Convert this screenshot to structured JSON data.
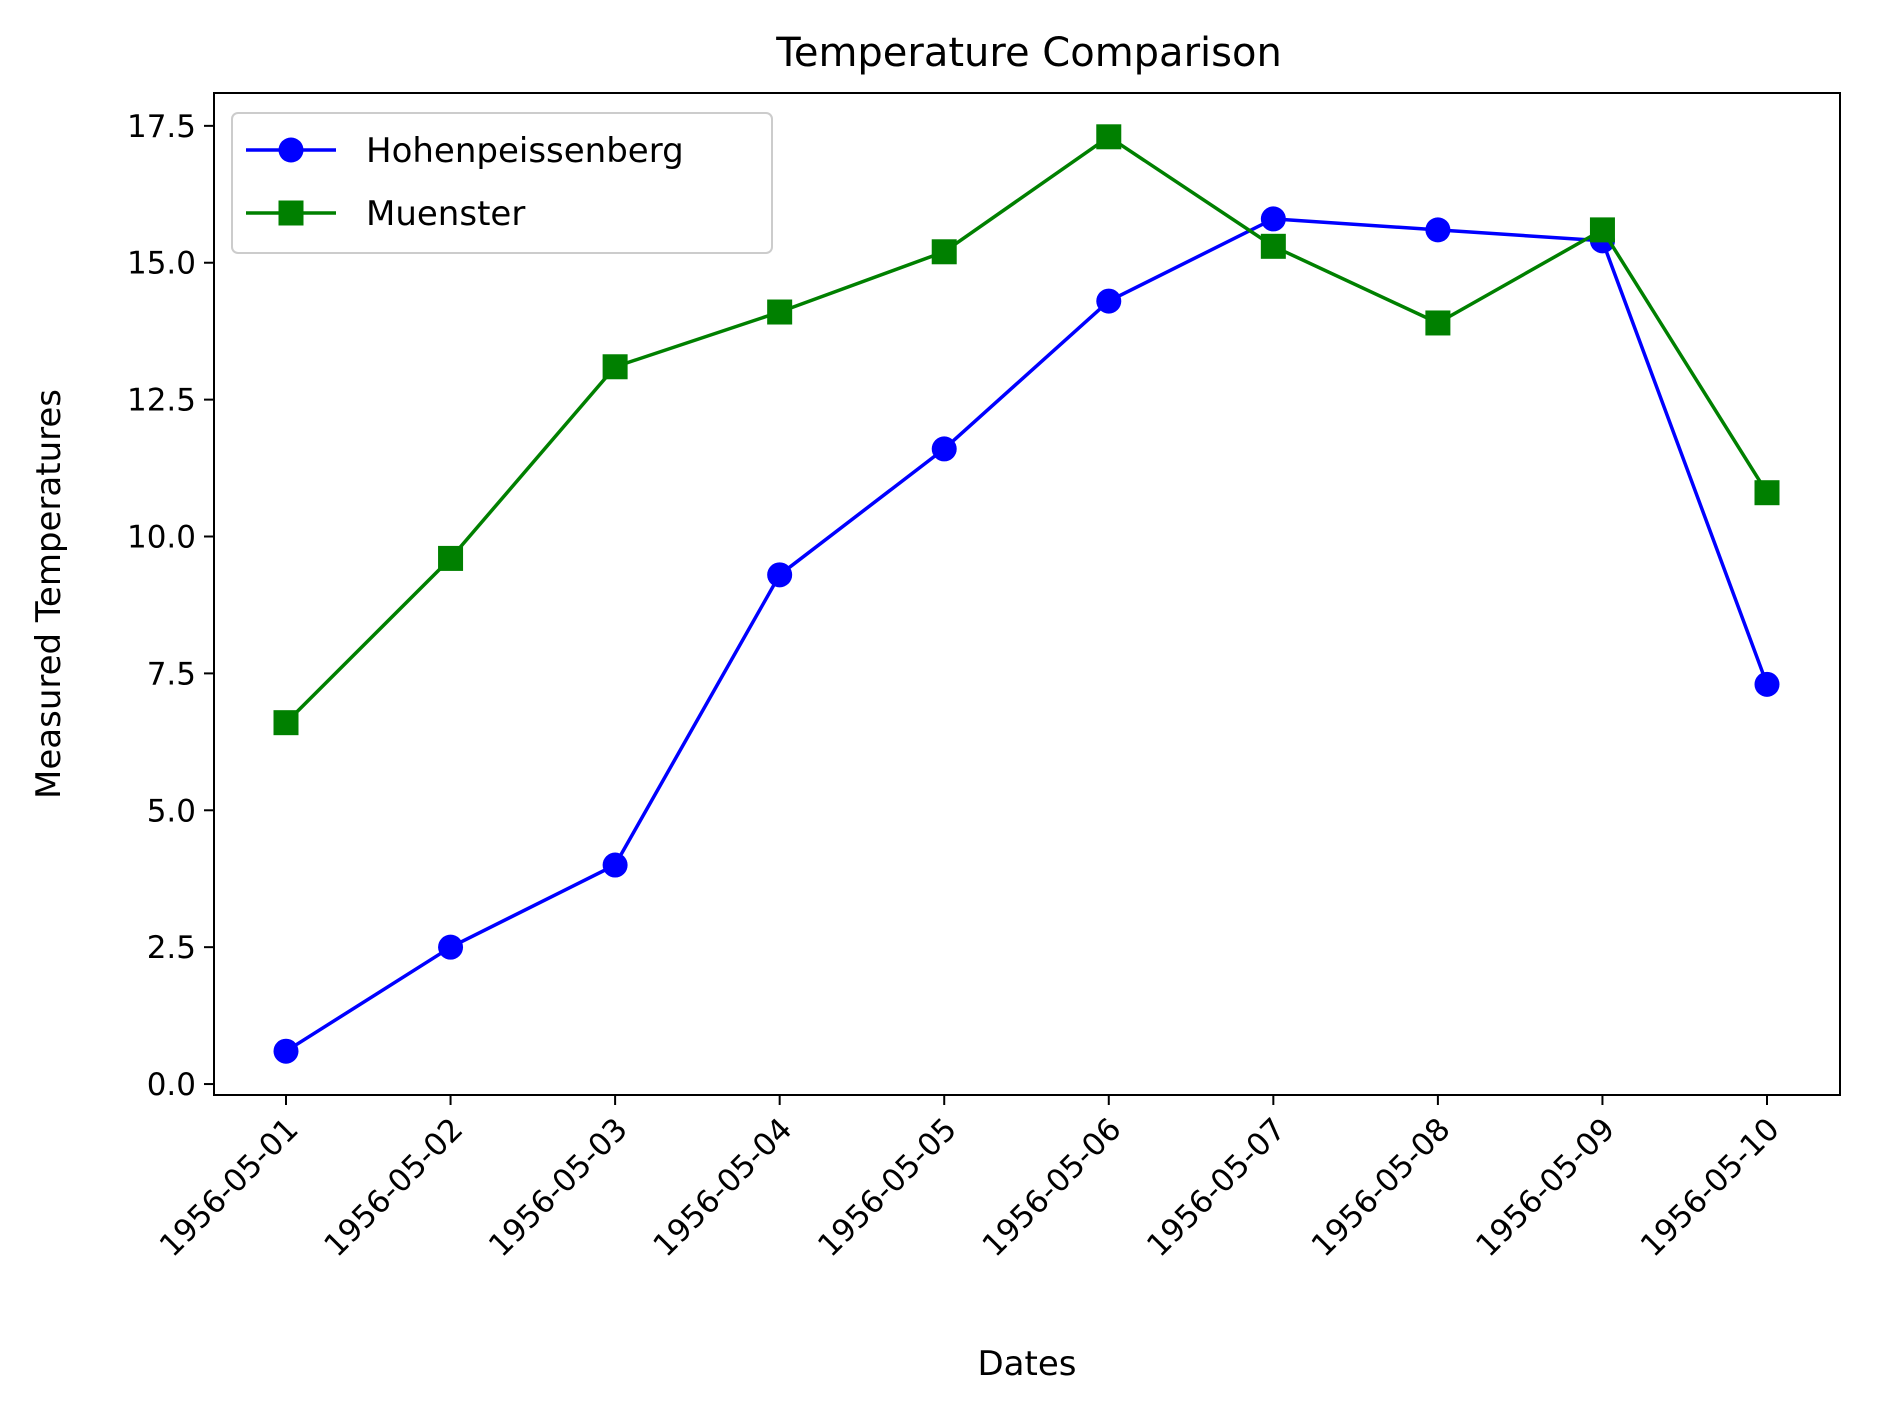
{
  "chart_data": {
    "type": "line",
    "title": "Temperature Comparison",
    "xlabel": "Dates",
    "ylabel": "Measured Temperatures",
    "categories": [
      "1956-05-01",
      "1956-05-02",
      "1956-05-03",
      "1956-05-04",
      "1956-05-05",
      "1956-05-06",
      "1956-05-07",
      "1956-05-08",
      "1956-05-09",
      "1956-05-10"
    ],
    "ylim": [
      -0.2,
      18.1
    ],
    "yticks": [
      "0.0",
      "2.5",
      "5.0",
      "7.5",
      "10.0",
      "12.5",
      "15.0",
      "17.5"
    ],
    "grid": false,
    "legend_position": "top-left",
    "series": [
      {
        "name": "Hohenpeissenberg",
        "color": "#0000ff",
        "marker": "circle",
        "values": [
          0.6,
          2.5,
          4.0,
          9.3,
          11.6,
          14.3,
          15.8,
          15.6,
          15.4,
          7.3
        ]
      },
      {
        "name": "Muenster",
        "color": "#008000",
        "marker": "square",
        "values": [
          6.6,
          9.6,
          13.1,
          14.1,
          15.2,
          17.3,
          15.3,
          13.9,
          15.6,
          10.8
        ]
      }
    ]
  }
}
